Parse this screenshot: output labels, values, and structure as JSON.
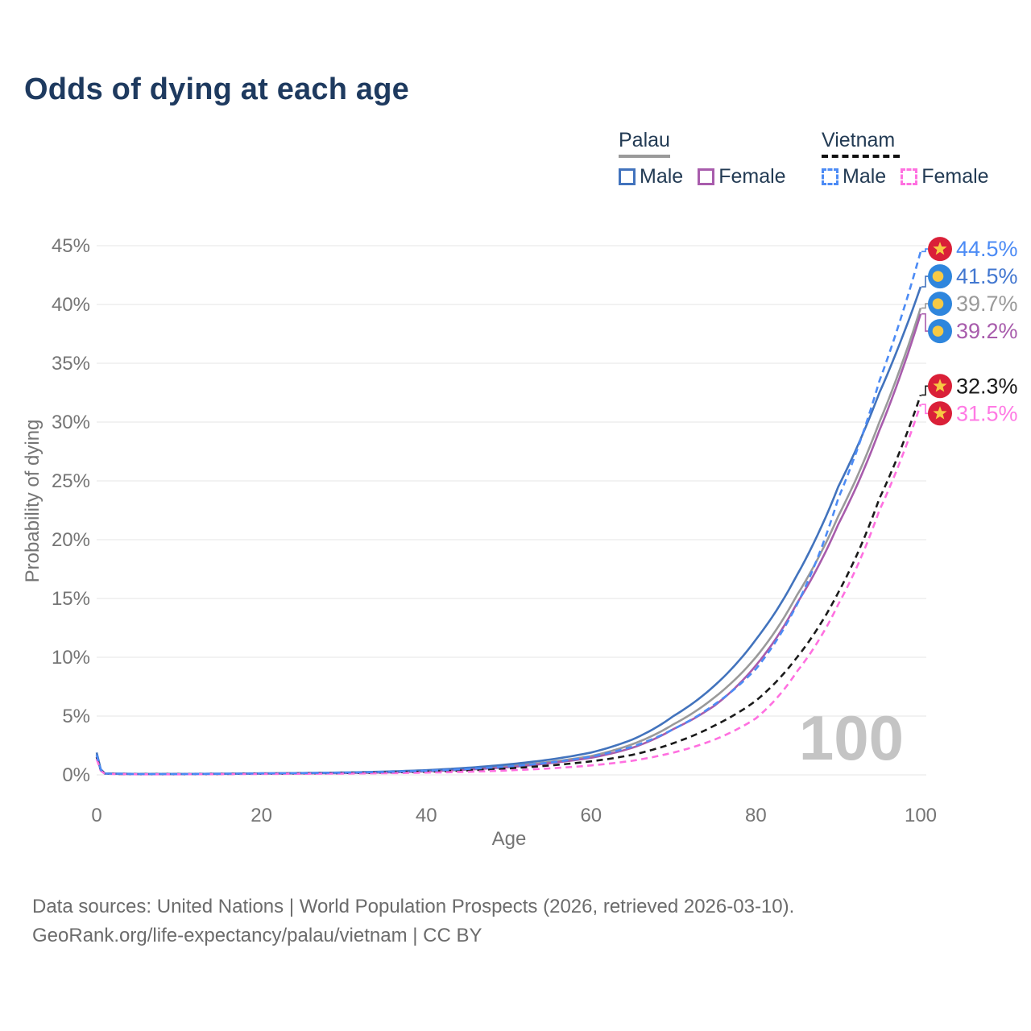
{
  "title": "Odds of dying at each age",
  "legend": {
    "groups": [
      {
        "name": "Palau",
        "line_style": "solid",
        "line_color": "#9a9a9a",
        "items": [
          {
            "label": "Male",
            "color": "#4273bd",
            "dashed": false
          },
          {
            "label": "Female",
            "color": "#a85cac",
            "dashed": false
          }
        ]
      },
      {
        "name": "Vietnam",
        "line_style": "dashed",
        "line_color": "#111111",
        "items": [
          {
            "label": "Male",
            "color": "#4c8bf5",
            "dashed": true
          },
          {
            "label": "Female",
            "color": "#ff70e0",
            "dashed": true
          }
        ]
      }
    ]
  },
  "chart_data": {
    "type": "line",
    "title": "Odds of dying at each age",
    "xlabel": "Age",
    "ylabel": "Probability of dying",
    "xlim": [
      0,
      100
    ],
    "ylim": [
      0,
      45
    ],
    "x_ticks": [
      0,
      20,
      40,
      60,
      80,
      100
    ],
    "y_ticks": [
      0,
      5,
      10,
      15,
      20,
      25,
      30,
      35,
      40,
      45
    ],
    "y_tick_suffix": "%",
    "grid": "horizontal",
    "legend_position": "top-right",
    "watermark": "100",
    "x": [
      0,
      1,
      5,
      10,
      15,
      20,
      25,
      30,
      35,
      40,
      45,
      50,
      55,
      60,
      65,
      70,
      75,
      80,
      85,
      90,
      95,
      100
    ],
    "series": [
      {
        "name": "Palau Total",
        "country": "Palau",
        "sex": "Both",
        "color": "#9a9a9a",
        "dashed": false,
        "values": [
          1.75,
          0.11,
          0.07,
          0.07,
          0.09,
          0.11,
          0.14,
          0.17,
          0.24,
          0.34,
          0.5,
          0.75,
          1.1,
          1.6,
          2.6,
          4.3,
          6.6,
          10.0,
          15.3,
          22.0,
          30.0,
          39.7
        ],
        "end_value": 39.7,
        "end_label": "39.7%",
        "label_color": "#9a9a9a",
        "flag": "palau"
      },
      {
        "name": "Palau Female",
        "country": "Palau",
        "sex": "Female",
        "color": "#a85cac",
        "dashed": false,
        "values": [
          1.55,
          0.1,
          0.06,
          0.06,
          0.08,
          0.1,
          0.12,
          0.15,
          0.2,
          0.3,
          0.45,
          0.65,
          1.0,
          1.45,
          2.3,
          3.9,
          5.9,
          9.3,
          14.6,
          21.3,
          29.3,
          39.2
        ],
        "end_value": 39.2,
        "end_label": "39.2%",
        "label_color": "#a85cac",
        "flag": "palau"
      },
      {
        "name": "Palau Male",
        "country": "Palau",
        "sex": "Male",
        "color": "#4273bd",
        "dashed": false,
        "values": [
          1.9,
          0.12,
          0.08,
          0.08,
          0.1,
          0.13,
          0.16,
          0.2,
          0.28,
          0.4,
          0.6,
          0.9,
          1.3,
          1.9,
          3.0,
          5.0,
          7.6,
          11.5,
          17.0,
          24.5,
          32.5,
          41.5
        ],
        "end_value": 41.5,
        "end_label": "41.5%",
        "label_color": "#4277d0",
        "flag": "palau"
      },
      {
        "name": "Vietnam Total",
        "country": "Vietnam",
        "sex": "Both",
        "color": "#1a1a1a",
        "dashed": true,
        "values": [
          1.5,
          0.1,
          0.06,
          0.06,
          0.08,
          0.1,
          0.12,
          0.15,
          0.2,
          0.27,
          0.38,
          0.55,
          0.8,
          1.15,
          1.7,
          2.7,
          4.2,
          6.3,
          10.0,
          15.5,
          23.5,
          32.3
        ],
        "end_value": 32.3,
        "end_label": "32.3%",
        "label_color": "#1a1a1a",
        "flag": "vietnam"
      },
      {
        "name": "Vietnam Female",
        "country": "Vietnam",
        "sex": "Female",
        "color": "#ff70e0",
        "dashed": true,
        "values": [
          1.35,
          0.09,
          0.05,
          0.05,
          0.06,
          0.08,
          0.09,
          0.11,
          0.14,
          0.19,
          0.26,
          0.38,
          0.55,
          0.8,
          1.2,
          1.9,
          3.0,
          4.8,
          8.8,
          14.5,
          22.5,
          31.5
        ],
        "end_value": 31.5,
        "end_label": "31.5%",
        "label_color": "#ff7ae4",
        "flag": "vietnam"
      },
      {
        "name": "Vietnam Male",
        "country": "Vietnam",
        "sex": "Male",
        "color": "#4c8bf5",
        "dashed": true,
        "values": [
          1.7,
          0.11,
          0.07,
          0.07,
          0.09,
          0.12,
          0.15,
          0.19,
          0.25,
          0.35,
          0.5,
          0.72,
          1.05,
          1.55,
          2.4,
          3.9,
          6.0,
          9.0,
          14.5,
          23.5,
          33.5,
          44.5
        ],
        "end_value": 44.5,
        "end_label": "44.5%",
        "label_color": "#4c8bf5",
        "flag": "vietnam"
      }
    ],
    "flags": {
      "palau": {
        "bg": "#2f86dd",
        "disc": "#f7c944"
      },
      "vietnam": {
        "bg": "#da2038",
        "star": "#f7c944"
      }
    }
  },
  "footer": {
    "line1": "Data sources: United Nations | World Population Prospects (2026, retrieved 2026-03-10).",
    "line2": "GeoRank.org/life-expectancy/palau/vietnam | CC BY"
  }
}
